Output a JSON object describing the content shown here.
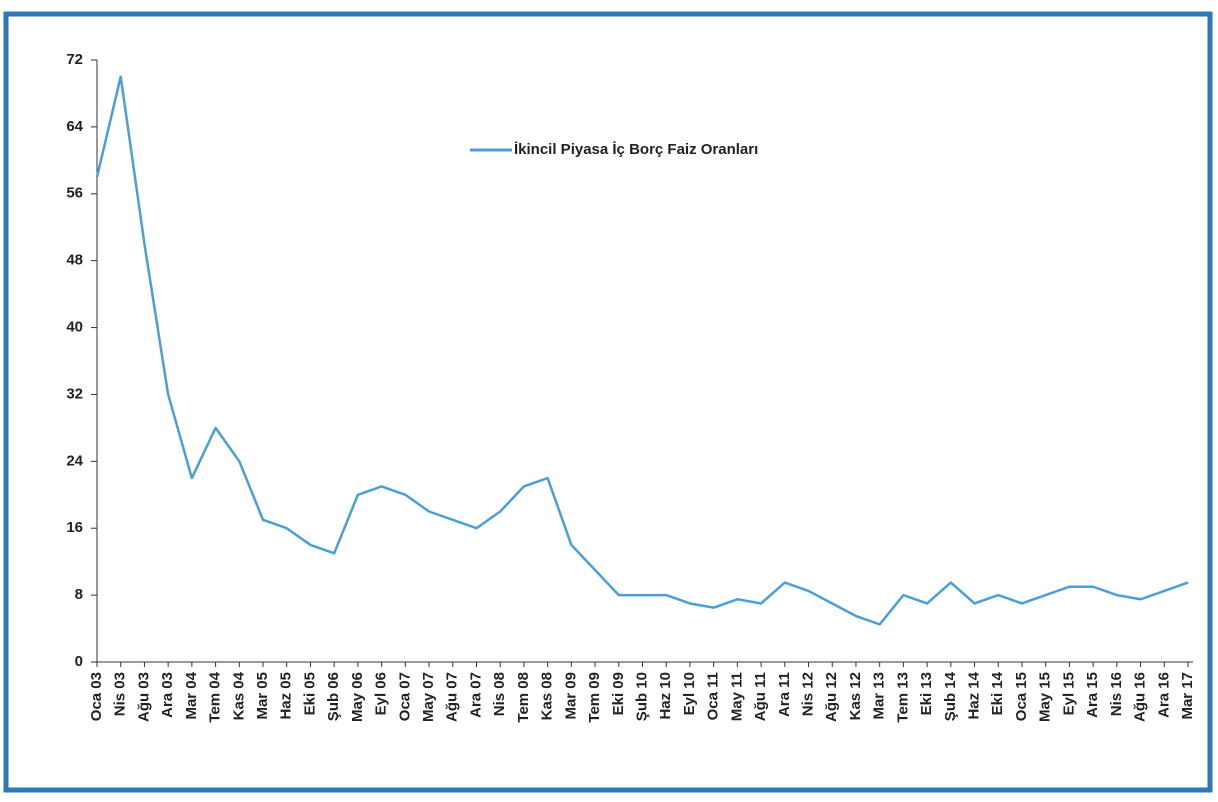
{
  "chart_data": {
    "type": "line",
    "categories": [
      "Oca 03",
      "Nis 03",
      "Ağu 03",
      "Ara 03",
      "Mar 04",
      "Tem 04",
      "Kas 04",
      "Mar 05",
      "Haz 05",
      "Eki 05",
      "Şub 06",
      "May 06",
      "Eyl 06",
      "Oca 07",
      "May 07",
      "Ağu 07",
      "Ara 07",
      "Nis 08",
      "Tem 08",
      "Kas 08",
      "Mar 09",
      "Tem 09",
      "Eki 09",
      "Şub 10",
      "Haz 10",
      "Eyl 10",
      "Oca 11",
      "May 11",
      "Ağu 11",
      "Ara 11",
      "Nis 12",
      "Ağu 12",
      "Kas 12",
      "Mar 13",
      "Tem 13",
      "Eki 13",
      "Şub 14",
      "Haz 14",
      "Eki 14",
      "Oca 15",
      "May 15",
      "Eyl 15",
      "Ara 15",
      "Nis 16",
      "Ağu 16",
      "Ara 16",
      "Mar 17"
    ],
    "series": [
      {
        "name": "İkincil Piyasa İç Borç Faiz Oranları",
        "color": "#4a9fd8",
        "values": [
          58,
          70,
          50,
          32,
          22,
          28,
          24,
          17,
          16,
          14,
          13,
          20,
          21,
          20,
          18,
          17,
          16,
          18,
          21,
          22,
          14,
          11,
          8,
          8,
          8,
          7,
          6.5,
          7.5,
          7,
          9.5,
          8.5,
          7,
          5.5,
          4.5,
          8,
          7,
          9.5,
          7,
          8,
          7,
          8,
          9,
          9,
          8,
          7.5,
          8.5,
          9.5
        ]
      }
    ],
    "ylim": [
      0,
      72
    ],
    "yticks": [
      0,
      8,
      16,
      24,
      32,
      40,
      48,
      56,
      64,
      72
    ],
    "legend": "top"
  }
}
